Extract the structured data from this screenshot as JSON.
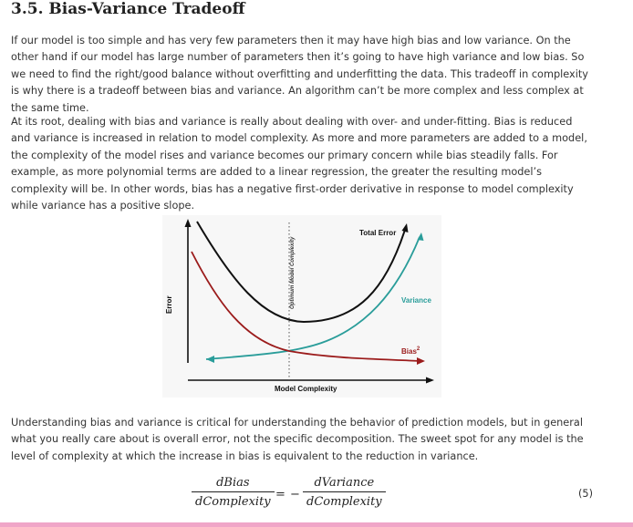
{
  "section": {
    "title": "3.5. Bias-Variance Tradeoff"
  },
  "paragraphs": [
    "If our model is too simple and has very few parameters then it may have high bias and low variance. On the other hand if our model has large number of parameters then it’s going to have high variance and low bias. So we need to find the right/good balance without overfitting and underfitting the data. This tradeoff in complexity is why there is a tradeoff between bias and variance. An algorithm can’t be more complex and less complex at the same time.",
    "At its root, dealing with bias and variance is really about dealing with over- and under-fitting. Bias is reduced and variance is increased in relation to model complexity. As more and more parameters are added to a model, the complexity of the model rises and variance becomes our primary concern while bias steadily falls. For example, as more polynomial terms are added to a linear regression, the greater the resulting model’s complexity will be. In other words, bias has a negative first-order derivative in response to model complexity while variance has a positive slope.",
    "Understanding bias and variance is critical for understanding the behavior of prediction models, but in general what you really care about is overall error, not the specific decomposition. The sweet spot for any model is the level of complexity at which the increase in bias is equivalent to the reduction in variance."
  ],
  "figure": {
    "labels": {
      "total_error": "Total Error",
      "variance": "Variance",
      "bias": "Bias",
      "bias_superscript": "2",
      "optimum": "Optimum Model Complexity",
      "x_axis": "Model Complexity",
      "y_axis": "Error"
    },
    "colors": {
      "total_error": "#111111",
      "variance": "#2a9d9a",
      "bias": "#9b1b1b",
      "axes": "#111111"
    }
  },
  "equation": {
    "lhs_numerator": "dBias",
    "lhs_denominator": "dComplexity",
    "sign": "=",
    "rhs_minus": "−",
    "rhs_numerator": "dVariance",
    "rhs_denominator": "dComplexity",
    "number": "(5)"
  }
}
